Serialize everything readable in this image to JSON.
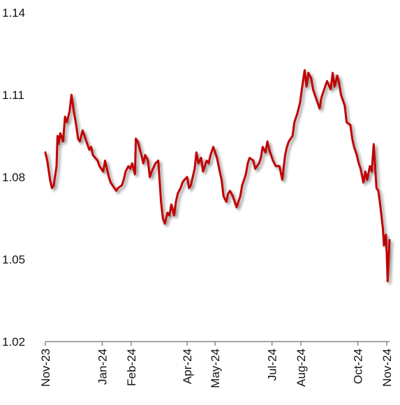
{
  "chart_data": {
    "type": "line",
    "title": "",
    "xlabel": "",
    "ylabel": "",
    "ylim": [
      1.02,
      1.14
    ],
    "yticks": [
      "1.14",
      "1.11",
      "1.08",
      "1.05",
      "1.02"
    ],
    "xlim": [
      "2023-11-01",
      "2024-11-04"
    ],
    "xticks": [
      {
        "label": "Nov-23",
        "date": "2023-11-01"
      },
      {
        "label": "Jan-24",
        "date": "2024-01-01"
      },
      {
        "label": "Feb-24",
        "date": "2024-02-01"
      },
      {
        "label": "Apr-24",
        "date": "2024-04-01"
      },
      {
        "label": "May-24",
        "date": "2024-05-01"
      },
      {
        "label": "Jul-24",
        "date": "2024-07-01"
      },
      {
        "label": "Aug-24",
        "date": "2024-08-01"
      },
      {
        "label": "Oct-24",
        "date": "2024-10-01"
      },
      {
        "label": "Nov-24",
        "date": "2024-11-01"
      }
    ],
    "grid": false,
    "legend": "none",
    "series": [
      {
        "color": "#c00000",
        "points": [
          [
            "2023-11-01",
            1.089
          ],
          [
            "2023-11-03",
            1.086
          ],
          [
            "2023-11-06",
            1.079
          ],
          [
            "2023-11-08",
            1.076
          ],
          [
            "2023-11-10",
            1.077
          ],
          [
            "2023-11-13",
            1.084
          ],
          [
            "2023-11-14",
            1.095
          ],
          [
            "2023-11-15",
            1.092
          ],
          [
            "2023-11-17",
            1.096
          ],
          [
            "2023-11-20",
            1.093
          ],
          [
            "2023-11-22",
            1.102
          ],
          [
            "2023-11-24",
            1.1
          ],
          [
            "2023-11-27",
            1.104
          ],
          [
            "2023-11-29",
            1.11
          ],
          [
            "2023-12-01",
            1.105
          ],
          [
            "2023-12-04",
            1.099
          ],
          [
            "2023-12-06",
            1.094
          ],
          [
            "2023-12-08",
            1.093
          ],
          [
            "2023-12-11",
            1.097
          ],
          [
            "2023-12-13",
            1.095
          ],
          [
            "2023-12-15",
            1.093
          ],
          [
            "2023-12-18",
            1.09
          ],
          [
            "2023-12-20",
            1.091
          ],
          [
            "2023-12-22",
            1.088
          ],
          [
            "2023-12-27",
            1.086
          ],
          [
            "2023-12-29",
            1.084
          ],
          [
            "2024-01-02",
            1.082
          ],
          [
            "2024-01-04",
            1.086
          ],
          [
            "2024-01-08",
            1.08
          ],
          [
            "2024-01-10",
            1.078
          ],
          [
            "2024-01-12",
            1.077
          ],
          [
            "2024-01-16",
            1.075
          ],
          [
            "2024-01-18",
            1.076
          ],
          [
            "2024-01-22",
            1.077
          ],
          [
            "2024-01-24",
            1.079
          ],
          [
            "2024-01-26",
            1.082
          ],
          [
            "2024-01-29",
            1.084
          ],
          [
            "2024-01-31",
            1.083
          ],
          [
            "2024-02-02",
            1.085
          ],
          [
            "2024-02-05",
            1.081
          ],
          [
            "2024-02-06",
            1.094
          ],
          [
            "2024-02-08",
            1.093
          ],
          [
            "2024-02-12",
            1.088
          ],
          [
            "2024-02-14",
            1.085
          ],
          [
            "2024-02-16",
            1.088
          ],
          [
            "2024-02-19",
            1.086
          ],
          [
            "2024-02-21",
            1.08
          ],
          [
            "2024-02-23",
            1.082
          ],
          [
            "2024-02-27",
            1.085
          ],
          [
            "2024-03-01",
            1.086
          ],
          [
            "2024-03-04",
            1.071
          ],
          [
            "2024-03-06",
            1.065
          ],
          [
            "2024-03-08",
            1.063
          ],
          [
            "2024-03-11",
            1.067
          ],
          [
            "2024-03-13",
            1.066
          ],
          [
            "2024-03-15",
            1.07
          ],
          [
            "2024-03-18",
            1.066
          ],
          [
            "2024-03-20",
            1.071
          ],
          [
            "2024-03-22",
            1.074
          ],
          [
            "2024-03-25",
            1.076
          ],
          [
            "2024-03-27",
            1.078
          ],
          [
            "2024-03-29",
            1.079
          ],
          [
            "2024-04-01",
            1.08
          ],
          [
            "2024-04-03",
            1.076
          ],
          [
            "2024-04-05",
            1.077
          ],
          [
            "2024-04-09",
            1.083
          ],
          [
            "2024-04-11",
            1.089
          ],
          [
            "2024-04-13",
            1.085
          ],
          [
            "2024-04-16",
            1.087
          ],
          [
            "2024-04-18",
            1.082
          ],
          [
            "2024-04-22",
            1.086
          ],
          [
            "2024-04-24",
            1.085
          ],
          [
            "2024-04-26",
            1.088
          ],
          [
            "2024-04-29",
            1.091
          ],
          [
            "2024-05-01",
            1.089
          ],
          [
            "2024-05-03",
            1.087
          ],
          [
            "2024-05-06",
            1.082
          ],
          [
            "2024-05-08",
            1.079
          ],
          [
            "2024-05-10",
            1.073
          ],
          [
            "2024-05-13",
            1.071
          ],
          [
            "2024-05-15",
            1.074
          ],
          [
            "2024-05-17",
            1.075
          ],
          [
            "2024-05-20",
            1.073
          ],
          [
            "2024-05-22",
            1.071
          ],
          [
            "2024-05-24",
            1.069
          ],
          [
            "2024-05-28",
            1.073
          ],
          [
            "2024-05-30",
            1.077
          ],
          [
            "2024-06-03",
            1.081
          ],
          [
            "2024-06-05",
            1.085
          ],
          [
            "2024-06-07",
            1.087
          ],
          [
            "2024-06-11",
            1.086
          ],
          [
            "2024-06-13",
            1.083
          ],
          [
            "2024-06-17",
            1.085
          ],
          [
            "2024-06-19",
            1.087
          ],
          [
            "2024-06-21",
            1.091
          ],
          [
            "2024-06-24",
            1.089
          ],
          [
            "2024-06-26",
            1.093
          ],
          [
            "2024-06-28",
            1.09
          ],
          [
            "2024-07-02",
            1.086
          ],
          [
            "2024-07-05",
            1.084
          ],
          [
            "2024-07-09",
            1.084
          ],
          [
            "2024-07-12",
            1.079
          ],
          [
            "2024-07-15",
            1.088
          ],
          [
            "2024-07-17",
            1.091
          ],
          [
            "2024-07-19",
            1.093
          ],
          [
            "2024-07-23",
            1.095
          ],
          [
            "2024-07-25",
            1.1
          ],
          [
            "2024-07-28",
            1.103
          ],
          [
            "2024-07-31",
            1.107
          ],
          [
            "2024-08-02",
            1.112
          ],
          [
            "2024-08-05",
            1.119
          ],
          [
            "2024-08-07",
            1.113
          ],
          [
            "2024-08-09",
            1.118
          ],
          [
            "2024-08-12",
            1.116
          ],
          [
            "2024-08-14",
            1.112
          ],
          [
            "2024-08-16",
            1.11
          ],
          [
            "2024-08-19",
            1.107
          ],
          [
            "2024-08-21",
            1.105
          ],
          [
            "2024-08-23",
            1.109
          ],
          [
            "2024-08-27",
            1.113
          ],
          [
            "2024-08-29",
            1.115
          ],
          [
            "2024-09-02",
            1.112
          ],
          [
            "2024-09-04",
            1.118
          ],
          [
            "2024-09-06",
            1.113
          ],
          [
            "2024-09-09",
            1.117
          ],
          [
            "2024-09-11",
            1.114
          ],
          [
            "2024-09-13",
            1.11
          ],
          [
            "2024-09-17",
            1.106
          ],
          [
            "2024-09-19",
            1.1
          ],
          [
            "2024-09-23",
            1.099
          ],
          [
            "2024-09-25",
            1.094
          ],
          [
            "2024-09-27",
            1.091
          ],
          [
            "2024-09-30",
            1.088
          ],
          [
            "2024-10-02",
            1.085
          ],
          [
            "2024-10-04",
            1.083
          ],
          [
            "2024-10-07",
            1.078
          ],
          [
            "2024-10-09",
            1.082
          ],
          [
            "2024-10-11",
            1.079
          ],
          [
            "2024-10-14",
            1.084
          ],
          [
            "2024-10-16",
            1.082
          ],
          [
            "2024-10-18",
            1.092
          ],
          [
            "2024-10-21",
            1.076
          ],
          [
            "2024-10-23",
            1.075
          ],
          [
            "2024-10-25",
            1.07
          ],
          [
            "2024-10-28",
            1.061
          ],
          [
            "2024-10-29",
            1.055
          ],
          [
            "2024-10-30",
            1.057
          ],
          [
            "2024-10-31",
            1.059
          ],
          [
            "2024-11-01",
            1.052
          ],
          [
            "2024-11-02",
            1.042
          ],
          [
            "2024-11-03",
            1.05
          ],
          [
            "2024-11-04",
            1.057
          ]
        ]
      }
    ]
  }
}
